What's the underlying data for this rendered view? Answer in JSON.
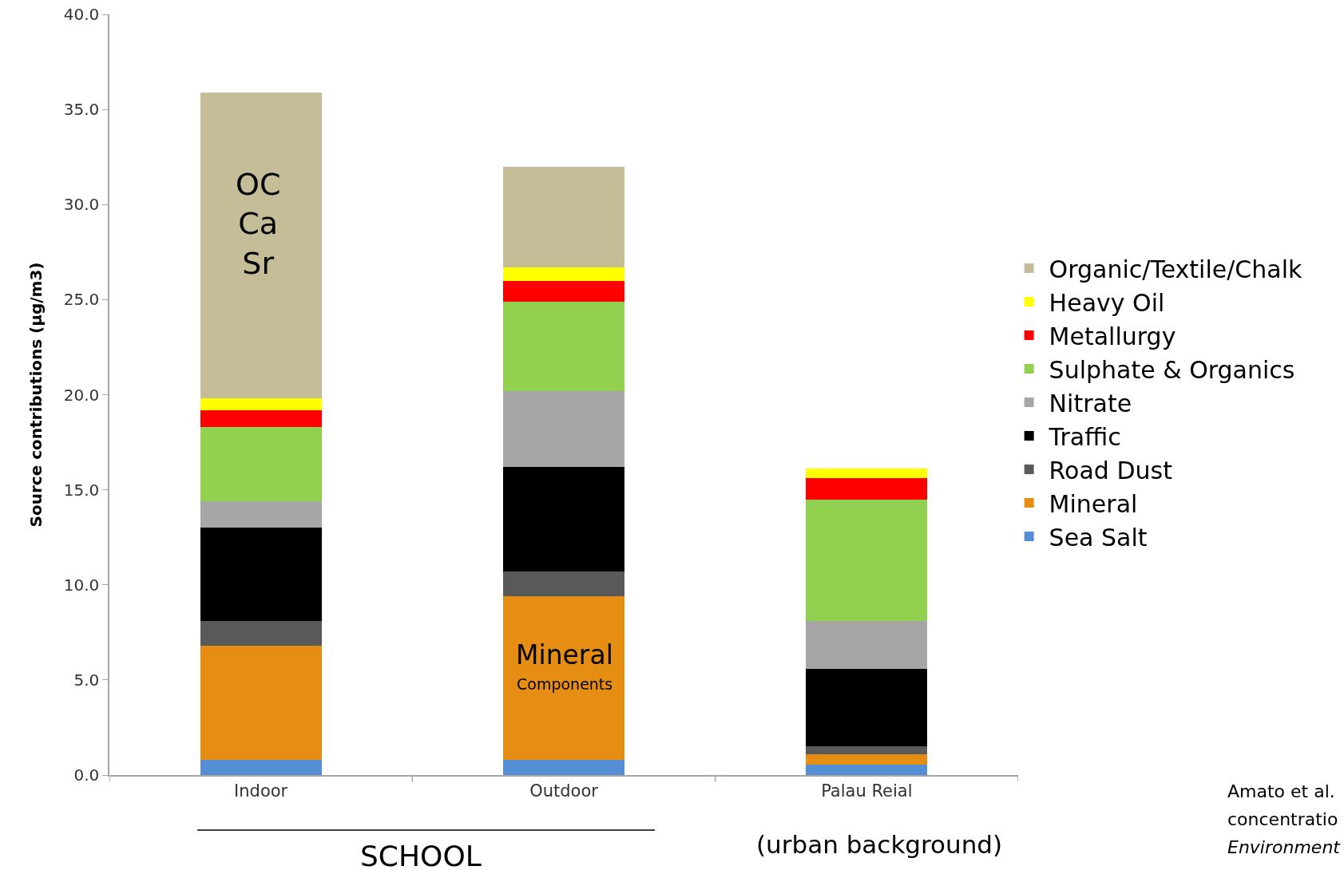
{
  "chart_data": {
    "type": "bar",
    "stacked": true,
    "categories": [
      "Indoor",
      "Outdoor",
      "Palau Reial"
    ],
    "ylabel": "Source contributions (µg/m3)",
    "ylim": [
      0,
      40
    ],
    "yticks": [
      {
        "value": 0,
        "label": "0.0"
      },
      {
        "value": 5,
        "label": "5.0"
      },
      {
        "value": 10,
        "label": "10.0"
      },
      {
        "value": 15,
        "label": "15.0"
      },
      {
        "value": 20,
        "label": "20.0"
      },
      {
        "value": 25,
        "label": "25.0"
      },
      {
        "value": 30,
        "label": "30.0"
      },
      {
        "value": 35,
        "label": "35.0"
      },
      {
        "value": 40,
        "label": "40.0"
      }
    ],
    "grid": false,
    "legend": "right",
    "series": [
      {
        "name": "Sea Salt",
        "color": "#558ed5",
        "values": [
          0.8,
          0.8,
          0.55
        ]
      },
      {
        "name": "Mineral",
        "color": "#e68e13",
        "values": [
          6.0,
          8.6,
          0.55
        ]
      },
      {
        "name": "Road Dust",
        "color": "#595959",
        "values": [
          1.3,
          1.3,
          0.4
        ]
      },
      {
        "name": "Traffic",
        "color": "#000000",
        "values": [
          4.9,
          5.5,
          4.1
        ]
      },
      {
        "name": "Nitrate",
        "color": "#a6a6a6",
        "values": [
          1.4,
          4.0,
          2.5
        ]
      },
      {
        "name": "Sulphate & Organics",
        "color": "#92d050",
        "values": [
          3.9,
          4.7,
          6.4
        ]
      },
      {
        "name": "Metallurgy",
        "color": "#ff0000",
        "values": [
          0.9,
          1.1,
          1.1
        ]
      },
      {
        "name": "Heavy Oil",
        "color": "#ffff00",
        "values": [
          0.6,
          0.7,
          0.5
        ]
      },
      {
        "name": "Organic/Textile/Chalk",
        "color": "#c4bd97",
        "values": [
          16.1,
          5.3,
          0
        ]
      }
    ],
    "annotations": [
      "OC\nCa\nSr",
      "Mineral",
      "Components",
      "SCHOOL",
      "(urban background)",
      "Amato et al.",
      "concentratio",
      "Environment"
    ]
  }
}
